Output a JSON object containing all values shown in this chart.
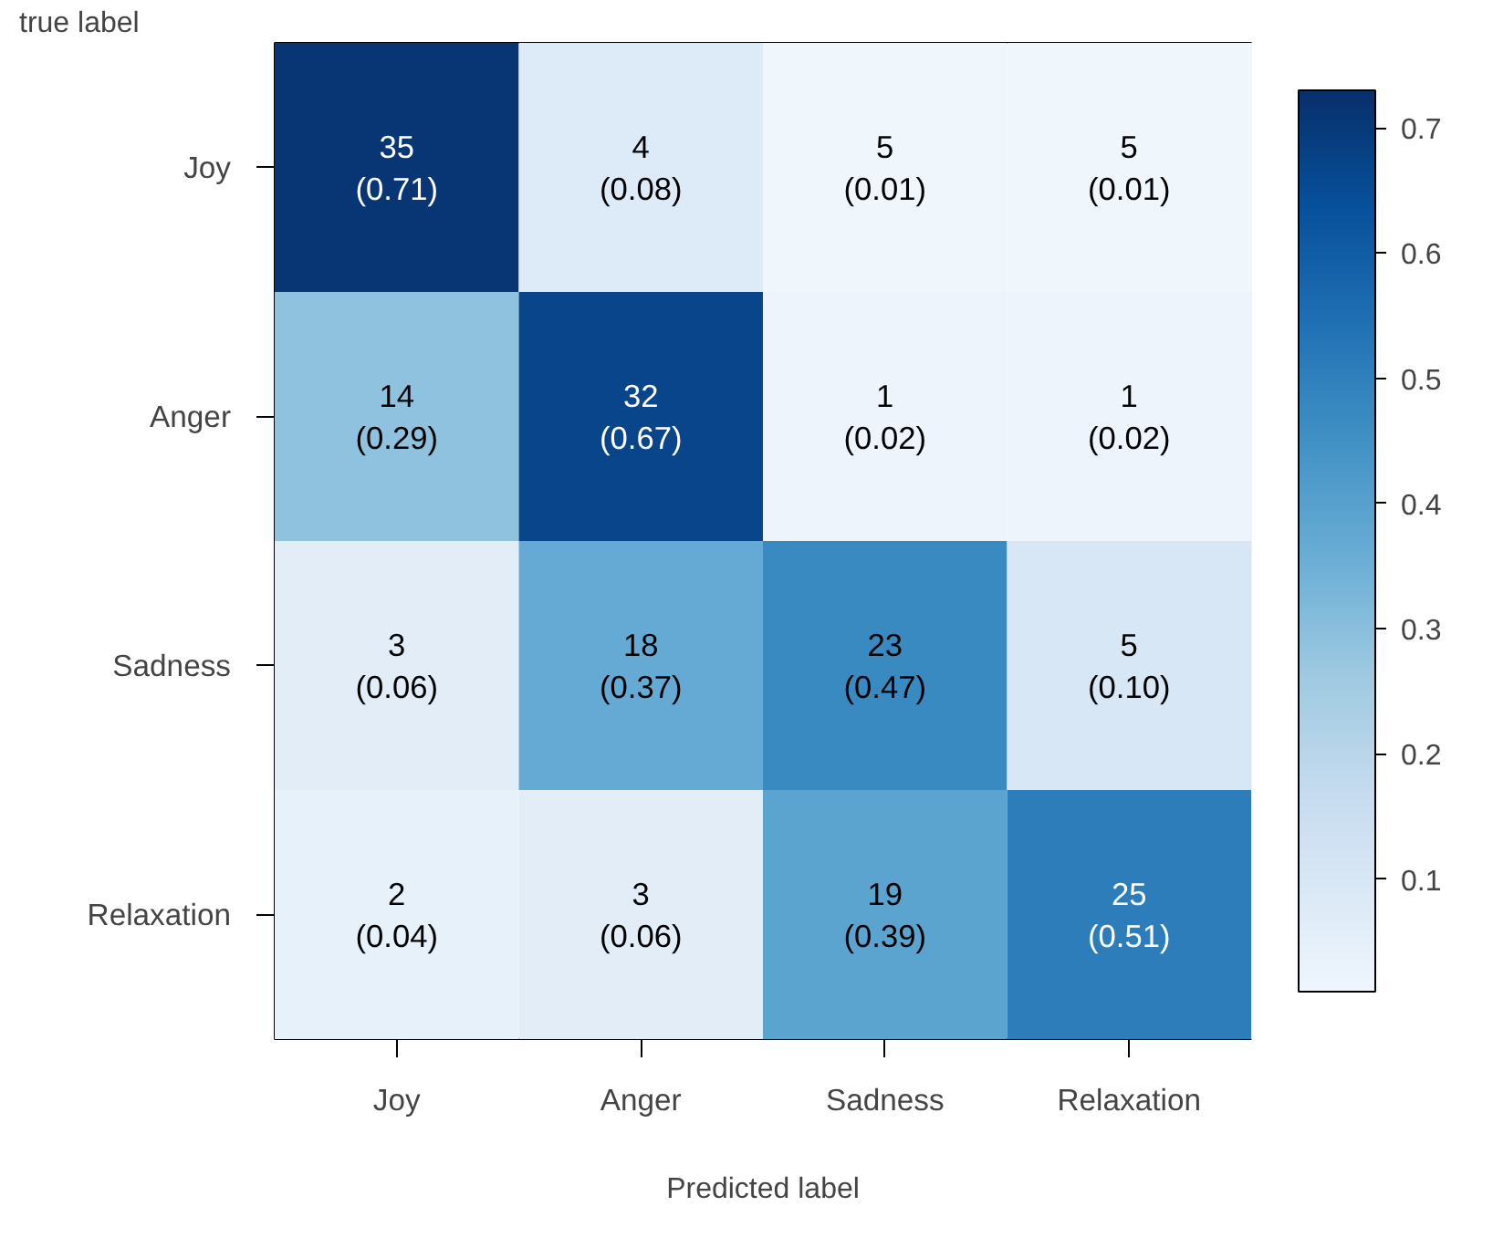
{
  "chart_data": {
    "type": "heatmap",
    "xlabel": "Predicted label",
    "ylabel": "true label",
    "categories": [
      "Joy",
      "Anger",
      "Sadness",
      "Relaxation"
    ],
    "y_categories": [
      "Joy",
      "Anger",
      "Sadness",
      "Relaxation"
    ],
    "cells": [
      [
        0.71,
        0.08,
        0.01,
        0.01
      ],
      [
        0.29,
        0.67,
        0.02,
        0.02
      ],
      [
        0.06,
        0.37,
        0.47,
        0.1
      ],
      [
        0.04,
        0.06,
        0.39,
        0.51
      ]
    ],
    "cell_labels": [
      [
        "35\n(0.71)",
        "4\n(0.08)",
        "5\n(0.01)",
        "5\n(0.01)"
      ],
      [
        "14\n(0.29)",
        "32\n(0.67)",
        "1\n(0.02)",
        "1\n(0.02)"
      ],
      [
        "3\n(0.06)",
        "18\n(0.37)",
        "23\n(0.47)",
        "5\n(0.10)"
      ],
      [
        "2\n(0.04)",
        "3\n(0.06)",
        "19\n(0.39)",
        "25\n(0.51)"
      ]
    ],
    "clim": [
      0.01,
      0.73
    ],
    "cticks": [
      0.1,
      0.2,
      0.3,
      0.4,
      0.5,
      0.6,
      0.7
    ]
  }
}
